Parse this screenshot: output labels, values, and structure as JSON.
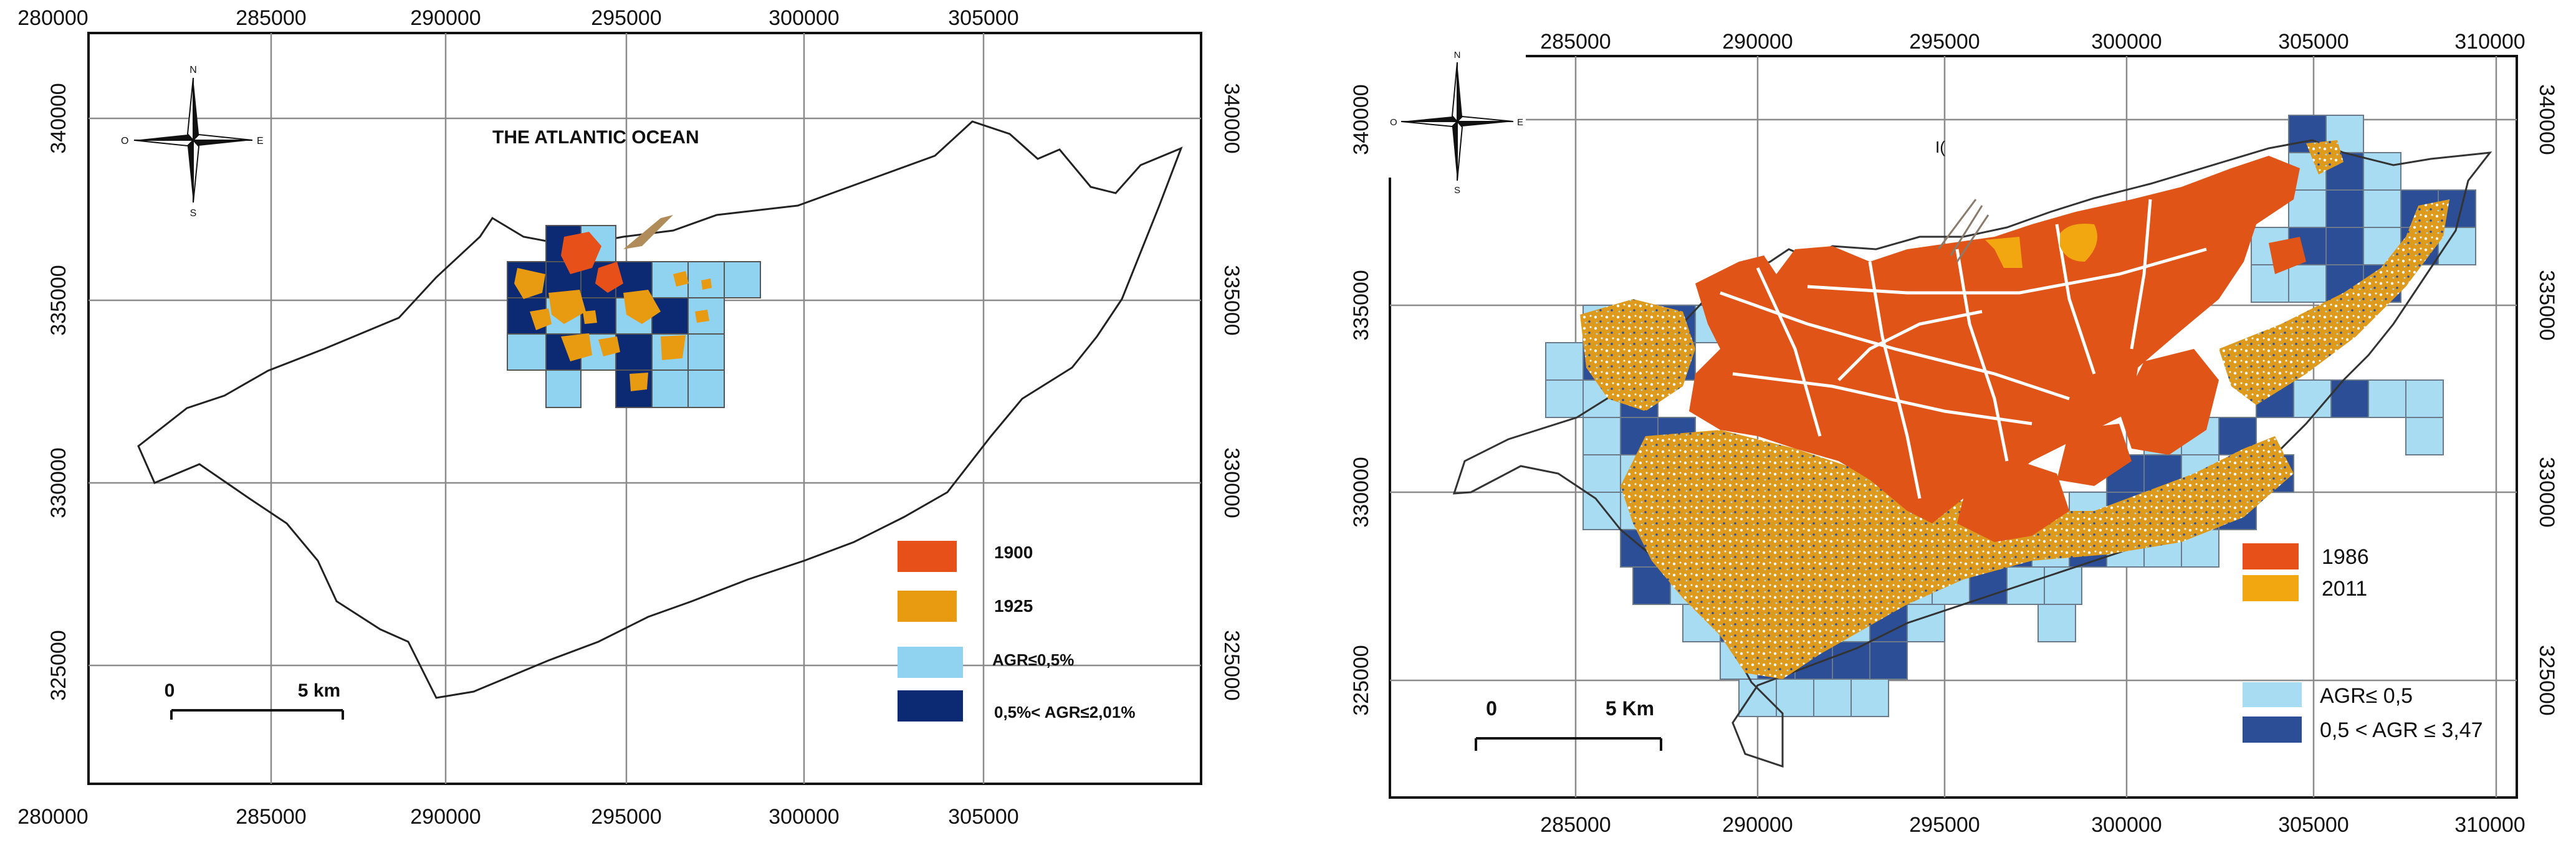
{
  "map1": {
    "ocean_label": "THE ATLANTIC OCEAN",
    "x_ticks_top": [
      "280000",
      "285000",
      "290000",
      "295000",
      "300000",
      "305000"
    ],
    "x_ticks_bottom": [
      "280000",
      "285000",
      "290000",
      "295000",
      "300000",
      "305000"
    ],
    "y_ticks": [
      "340000",
      "335000",
      "330000",
      "325000"
    ],
    "compass": {
      "n": "N",
      "s": "S",
      "e": "E",
      "w": "O"
    },
    "scale": {
      "zero": "0",
      "end": "5 km"
    },
    "legend": [
      {
        "label": "1900",
        "color": "#e8501a"
      },
      {
        "label": "1925",
        "color": "#e89a10"
      },
      {
        "label": "AGR≤0,5%",
        "color": "#8fd3f0"
      },
      {
        "label": "0,5%< AGR≤2,01%",
        "color": "#0b2a73"
      }
    ]
  },
  "map2": {
    "x_ticks_top": [
      "285000",
      "290000",
      "295000",
      "300000",
      "305000",
      "310000"
    ],
    "x_ticks_bottom": [
      "285000",
      "290000",
      "295000",
      "300000",
      "305000",
      "310000"
    ],
    "y_ticks": [
      "340000",
      "335000",
      "330000",
      "325000"
    ],
    "compass": {
      "n": "N",
      "s": "S",
      "e": "E",
      "w": "O"
    },
    "stray_mark": "I(",
    "scale": {
      "zero": "0",
      "end": "5 Km"
    },
    "legend": [
      {
        "label": "1986",
        "color": "#e8501a"
      },
      {
        "label": "2011",
        "color": "#f2a60f"
      },
      {
        "label": "AGR≤ 0,5",
        "color": "#a8dcf2"
      },
      {
        "label": "0,5 < AGR ≤ 3,47",
        "color": "#2b4e96"
      }
    ]
  }
}
